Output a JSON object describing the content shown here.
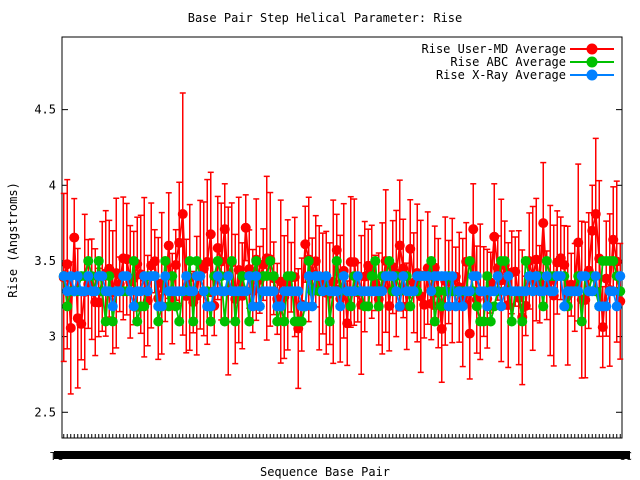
{
  "chart_data": {
    "type": "line",
    "title": "Base Pair Step Helical Parameter: Rise",
    "xlabel": "Sequence Base Pair",
    "ylabel": "Rise (Angstroms)",
    "ylim": [
      2.33,
      4.98
    ],
    "yticks": [
      "2.5",
      "3",
      "3.5",
      "4",
      "4.5"
    ],
    "ytick_values": [
      2.5,
      3.0,
      3.5,
      4.0,
      4.5
    ],
    "xtick_first": "TC",
    "xtick_last": "CC",
    "n_steps": 160,
    "legend_position": "top-right",
    "grid": false,
    "series": [
      {
        "name": "Rise User-MD Average",
        "color": "#ff0000",
        "has_errorbars": true
      },
      {
        "name": "Rise ABC Average",
        "color": "#00c000",
        "has_errorbars": false
      },
      {
        "name": "Rise X-Ray Average",
        "color": "#0080ff",
        "has_errorbars": false
      }
    ]
  }
}
